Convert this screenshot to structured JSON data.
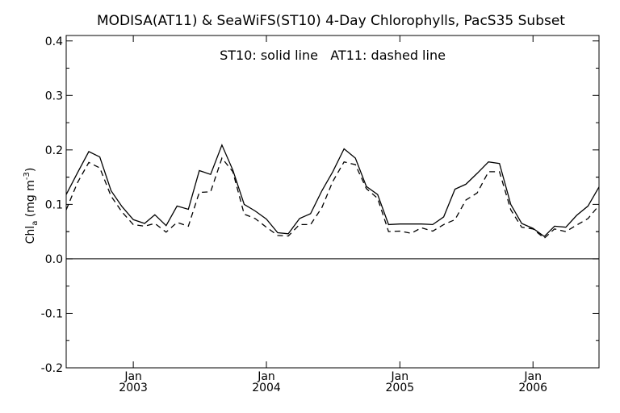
{
  "chart_data": {
    "type": "line",
    "title": "MODISA(AT11) & SeaWiFS(ST10) 4-Day Chlorophylls, PacS35 Subset",
    "annotation": "ST10: solid line   AT11: dashed line",
    "ylabel_main": "Chl",
    "ylabel_sub": "a",
    "ylabel_unit": " (mg m",
    "ylabel_exp": "-3",
    "ylabel_close": ")",
    "xlabel": "",
    "ylim": [
      -0.2,
      0.41
    ],
    "xlim": [
      "2002-07-01",
      "2006-07-01"
    ],
    "y_ticks": [
      {
        "value": 0.4,
        "label": "0.4"
      },
      {
        "value": 0.3,
        "label": "0.3"
      },
      {
        "value": 0.2,
        "label": "0.2"
      },
      {
        "value": 0.1,
        "label": "0.1"
      },
      {
        "value": 0.0,
        "label": "0.0"
      },
      {
        "value": -0.1,
        "label": "-0.1"
      },
      {
        "value": -0.2,
        "label": "-0.2"
      }
    ],
    "x_ticks": [
      {
        "date": "2003-01-01",
        "month": "Jan",
        "year": "2003"
      },
      {
        "date": "2004-01-01",
        "month": "Jan",
        "year": "2004"
      },
      {
        "date": "2005-01-01",
        "month": "Jan",
        "year": "2005"
      },
      {
        "date": "2006-01-01",
        "month": "Jan",
        "year": "2006"
      }
    ],
    "zero_line": 0.0,
    "grid": false,
    "series": [
      {
        "name": "ST10",
        "style": "solid",
        "color": "#000000",
        "x": [
          "2002-07-01",
          "2002-08-01",
          "2002-09-01",
          "2002-10-01",
          "2002-11-01",
          "2002-12-01",
          "2003-01-01",
          "2003-02-01",
          "2003-03-01",
          "2003-04-01",
          "2003-05-01",
          "2003-06-01",
          "2003-07-01",
          "2003-08-01",
          "2003-09-01",
          "2003-10-01",
          "2003-11-01",
          "2003-12-01",
          "2004-01-01",
          "2004-02-01",
          "2004-03-01",
          "2004-04-01",
          "2004-05-01",
          "2004-06-01",
          "2004-07-01",
          "2004-08-01",
          "2004-09-01",
          "2004-10-01",
          "2004-11-01",
          "2004-12-01",
          "2005-01-01",
          "2005-02-01",
          "2005-03-01",
          "2005-04-01",
          "2005-05-01",
          "2005-06-01",
          "2005-07-01",
          "2005-08-01",
          "2005-09-01",
          "2005-10-01",
          "2005-11-01",
          "2005-12-01",
          "2006-01-01",
          "2006-02-01",
          "2006-03-01",
          "2006-04-01",
          "2006-05-01",
          "2006-06-01",
          "2006-07-01"
        ],
        "values": [
          0.118,
          0.158,
          0.197,
          0.187,
          0.125,
          0.096,
          0.072,
          0.065,
          0.081,
          0.061,
          0.097,
          0.091,
          0.162,
          0.155,
          0.209,
          0.163,
          0.1,
          0.088,
          0.073,
          0.048,
          0.046,
          0.074,
          0.083,
          0.125,
          0.16,
          0.202,
          0.185,
          0.133,
          0.118,
          0.063,
          0.064,
          0.064,
          0.064,
          0.063,
          0.077,
          0.128,
          0.137,
          0.157,
          0.178,
          0.175,
          0.1,
          0.065,
          0.056,
          0.041,
          0.06,
          0.058,
          0.08,
          0.097,
          0.132
        ]
      },
      {
        "name": "AT11",
        "style": "dashed",
        "color": "#000000",
        "x": [
          "2002-07-01",
          "2002-08-01",
          "2002-09-01",
          "2002-10-01",
          "2002-11-01",
          "2002-12-01",
          "2003-01-01",
          "2003-02-01",
          "2003-03-01",
          "2003-04-01",
          "2003-05-01",
          "2003-06-01",
          "2003-07-01",
          "2003-08-01",
          "2003-09-01",
          "2003-10-01",
          "2003-11-01",
          "2003-12-01",
          "2004-01-01",
          "2004-02-01",
          "2004-03-01",
          "2004-04-01",
          "2004-05-01",
          "2004-06-01",
          "2004-07-01",
          "2004-08-01",
          "2004-09-01",
          "2004-10-01",
          "2004-11-01",
          "2004-12-01",
          "2005-01-01",
          "2005-02-01",
          "2005-03-01",
          "2005-04-01",
          "2005-05-01",
          "2005-06-01",
          "2005-07-01",
          "2005-08-01",
          "2005-09-01",
          "2005-10-01",
          "2005-11-01",
          "2005-12-01",
          "2006-01-01",
          "2006-02-01",
          "2006-03-01",
          "2006-04-01",
          "2006-05-01",
          "2006-06-01",
          "2006-07-01"
        ],
        "values": [
          0.09,
          0.14,
          0.177,
          0.167,
          0.115,
          0.086,
          0.063,
          0.06,
          0.065,
          0.049,
          0.067,
          0.06,
          0.122,
          0.123,
          0.185,
          0.16,
          0.082,
          0.074,
          0.058,
          0.043,
          0.042,
          0.063,
          0.063,
          0.094,
          0.142,
          0.178,
          0.173,
          0.129,
          0.111,
          0.05,
          0.051,
          0.047,
          0.057,
          0.051,
          0.063,
          0.072,
          0.108,
          0.121,
          0.16,
          0.16,
          0.09,
          0.058,
          0.055,
          0.038,
          0.055,
          0.05,
          0.062,
          0.074,
          0.098
        ]
      }
    ]
  }
}
